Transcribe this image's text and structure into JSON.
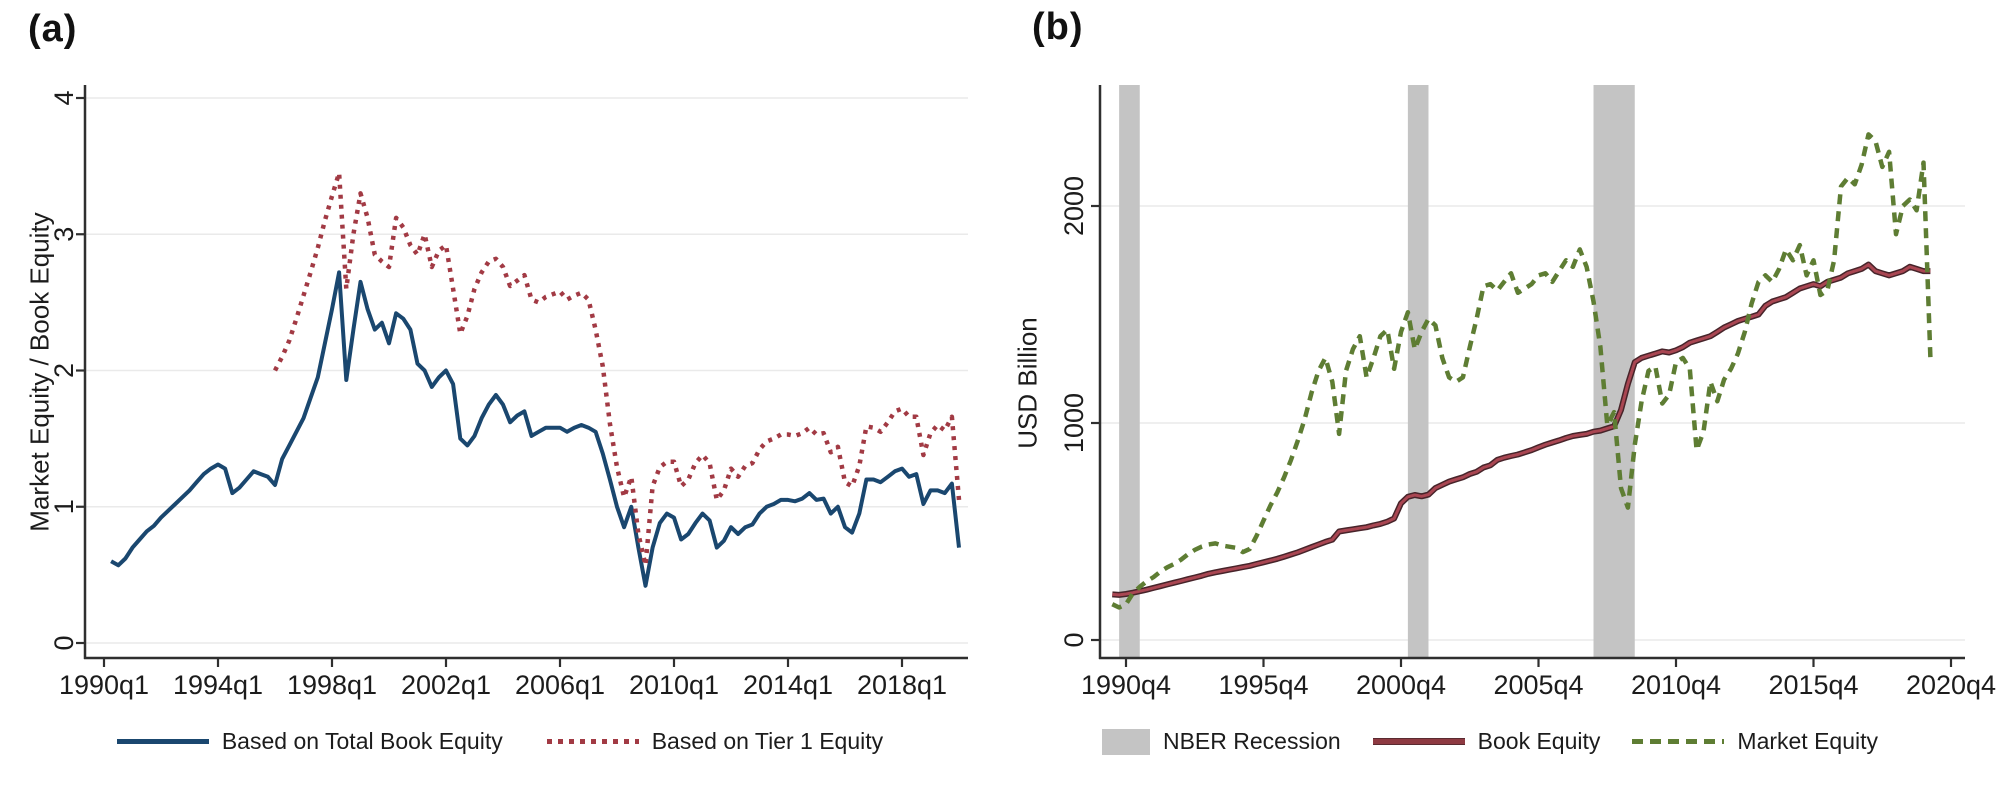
{
  "chart_data": [
    {
      "type": "line",
      "panel_label": "(a)",
      "ylabel": "Market Equity / Book Equity",
      "xlabel": "",
      "ylim": [
        0,
        4
      ],
      "grid": "horizontal",
      "legend_position": "bottom",
      "x_unit": "decimal years (quarterly)",
      "y_ticks": [
        {
          "v": 0,
          "label": "0"
        },
        {
          "v": 1,
          "label": "1"
        },
        {
          "v": 2,
          "label": "2"
        },
        {
          "v": 3,
          "label": "3"
        },
        {
          "v": 4,
          "label": "4"
        }
      ],
      "x_ticks": [
        {
          "t": 1990.0,
          "label": "1990q1"
        },
        {
          "t": 1994.0,
          "label": "1994q1"
        },
        {
          "t": 1998.0,
          "label": "1998q1"
        },
        {
          "t": 2002.0,
          "label": "2002q1"
        },
        {
          "t": 2006.0,
          "label": "2006q1"
        },
        {
          "t": 2010.0,
          "label": "2010q1"
        },
        {
          "t": 2014.0,
          "label": "2014q1"
        },
        {
          "t": 2018.0,
          "label": "2018q1"
        }
      ],
      "series": [
        {
          "name": "Based on Total Book Equity",
          "color": "#1a476f",
          "line": "solid",
          "width": 4,
          "start": 1990.25,
          "step": 0.25,
          "values": [
            0.6,
            0.57,
            0.62,
            0.7,
            0.76,
            0.82,
            0.86,
            0.92,
            0.97,
            1.02,
            1.07,
            1.12,
            1.18,
            1.24,
            1.28,
            1.31,
            1.28,
            1.1,
            1.14,
            1.2,
            1.26,
            1.24,
            1.22,
            1.16,
            1.35,
            1.45,
            1.55,
            1.65,
            1.8,
            1.95,
            2.2,
            2.45,
            2.72,
            1.93,
            2.3,
            2.65,
            2.45,
            2.3,
            2.35,
            2.2,
            2.42,
            2.38,
            2.3,
            2.05,
            2.0,
            1.88,
            1.95,
            2.0,
            1.9,
            1.5,
            1.45,
            1.52,
            1.65,
            1.75,
            1.82,
            1.75,
            1.62,
            1.67,
            1.7,
            1.52,
            1.55,
            1.58,
            1.58,
            1.58,
            1.55,
            1.58,
            1.6,
            1.58,
            1.55,
            1.39,
            1.2,
            1.0,
            0.85,
            1.0,
            0.7,
            0.42,
            0.7,
            0.88,
            0.95,
            0.92,
            0.76,
            0.8,
            0.88,
            0.95,
            0.9,
            0.7,
            0.75,
            0.85,
            0.8,
            0.85,
            0.87,
            0.95,
            1.0,
            1.02,
            1.05,
            1.05,
            1.04,
            1.06,
            1.1,
            1.05,
            1.06,
            0.95,
            1.0,
            0.85,
            0.81,
            0.95,
            1.2,
            1.2,
            1.18,
            1.22,
            1.26,
            1.28,
            1.22,
            1.24,
            1.02,
            1.12,
            1.12,
            1.1,
            1.17,
            0.7
          ]
        },
        {
          "name": "Based on Tier 1 Equity",
          "color": "#a23a44",
          "line": "dotted",
          "width": 4.5,
          "start": 1996.0,
          "step": 0.25,
          "values": [
            2.0,
            2.1,
            2.22,
            2.38,
            2.55,
            2.72,
            2.9,
            3.1,
            3.28,
            3.45,
            2.6,
            3.0,
            3.3,
            3.12,
            2.85,
            2.8,
            2.76,
            3.12,
            3.05,
            2.92,
            2.85,
            3.0,
            2.76,
            2.88,
            2.92,
            2.6,
            2.27,
            2.4,
            2.6,
            2.72,
            2.8,
            2.82,
            2.76,
            2.62,
            2.66,
            2.7,
            2.52,
            2.5,
            2.54,
            2.56,
            2.58,
            2.52,
            2.55,
            2.57,
            2.52,
            2.3,
            2.03,
            1.61,
            1.29,
            1.07,
            1.22,
            0.8,
            0.57,
            1.15,
            1.29,
            1.33,
            1.33,
            1.15,
            1.2,
            1.32,
            1.38,
            1.32,
            1.05,
            1.12,
            1.28,
            1.22,
            1.3,
            1.32,
            1.42,
            1.48,
            1.5,
            1.53,
            1.53,
            1.52,
            1.54,
            1.58,
            1.53,
            1.54,
            1.4,
            1.44,
            1.18,
            1.15,
            1.3,
            1.59,
            1.58,
            1.55,
            1.62,
            1.7,
            1.72,
            1.66,
            1.66,
            1.38,
            1.54,
            1.6,
            1.56,
            1.66,
            1.05
          ]
        }
      ]
    },
    {
      "type": "line",
      "panel_label": "(b)",
      "ylabel": "USD Billion",
      "xlabel": "",
      "ylim": [
        0,
        2550
      ],
      "grid": "horizontal",
      "legend_position": "bottom",
      "x_unit": "decimal years (quarterly)",
      "recession_label": "NBER Recession",
      "recession_color": "#c4c4c4",
      "recessions": [
        {
          "start": 1990.5,
          "end": 1991.25
        },
        {
          "start": 2001.0,
          "end": 2001.75
        },
        {
          "start": 2007.75,
          "end": 2009.25
        }
      ],
      "y_ticks": [
        {
          "v": 0,
          "label": "0"
        },
        {
          "v": 1000,
          "label": "1000"
        },
        {
          "v": 2000,
          "label": "2000"
        }
      ],
      "x_ticks": [
        {
          "t": 1990.75,
          "label": "1990q4"
        },
        {
          "t": 1995.75,
          "label": "1995q4"
        },
        {
          "t": 2000.75,
          "label": "2000q4"
        },
        {
          "t": 2005.75,
          "label": "2005q4"
        },
        {
          "t": 2010.75,
          "label": "2010q4"
        },
        {
          "t": 2015.75,
          "label": "2015q4"
        },
        {
          "t": 2020.75,
          "label": "2020q4"
        }
      ],
      "series": [
        {
          "name": "Book Equity",
          "color": "#a94652",
          "outline": "#47242a",
          "line": "solid",
          "width": 3,
          "start": 1990.25,
          "step": 0.25,
          "values": [
            210,
            208,
            212,
            218,
            225,
            232,
            240,
            248,
            256,
            264,
            272,
            280,
            288,
            296,
            305,
            312,
            318,
            324,
            330,
            336,
            342,
            350,
            358,
            366,
            374,
            384,
            394,
            404,
            416,
            428,
            440,
            452,
            462,
            500,
            505,
            510,
            515,
            520,
            528,
            535,
            545,
            560,
            630,
            660,
            668,
            662,
            670,
            700,
            715,
            730,
            740,
            750,
            765,
            775,
            795,
            805,
            830,
            840,
            848,
            855,
            865,
            875,
            888,
            900,
            910,
            920,
            931,
            940,
            945,
            950,
            960,
            965,
            975,
            985,
            1060,
            1180,
            1280,
            1300,
            1310,
            1320,
            1330,
            1325,
            1335,
            1350,
            1370,
            1380,
            1390,
            1400,
            1420,
            1440,
            1455,
            1470,
            1480,
            1490,
            1500,
            1540,
            1560,
            1570,
            1580,
            1600,
            1620,
            1630,
            1640,
            1630,
            1650,
            1660,
            1670,
            1690,
            1700,
            1710,
            1730,
            1700,
            1690,
            1680,
            1690,
            1700,
            1720,
            1710,
            1700,
            1700
          ]
        },
        {
          "name": "Market Equity",
          "color": "#5e7d33",
          "line": "dashed",
          "width": 4.5,
          "start": 1990.25,
          "step": 0.25,
          "values": [
            165,
            150,
            165,
            215,
            245,
            270,
            290,
            315,
            335,
            350,
            370,
            395,
            415,
            430,
            440,
            445,
            435,
            430,
            425,
            405,
            420,
            480,
            550,
            620,
            680,
            750,
            830,
            920,
            1020,
            1140,
            1240,
            1300,
            1190,
            950,
            1240,
            1340,
            1400,
            1210,
            1300,
            1400,
            1430,
            1250,
            1420,
            1510,
            1340,
            1420,
            1480,
            1450,
            1300,
            1210,
            1190,
            1210,
            1350,
            1480,
            1630,
            1640,
            1610,
            1650,
            1690,
            1600,
            1620,
            1640,
            1680,
            1690,
            1650,
            1700,
            1750,
            1720,
            1800,
            1720,
            1560,
            1350,
            990,
            1050,
            700,
            610,
            900,
            1100,
            1240,
            1260,
            1090,
            1130,
            1280,
            1300,
            1250,
            875,
            960,
            1190,
            1100,
            1200,
            1250,
            1320,
            1420,
            1550,
            1650,
            1680,
            1650,
            1710,
            1800,
            1750,
            1820,
            1680,
            1750,
            1590,
            1610,
            1750,
            2090,
            2130,
            2100,
            2190,
            2330,
            2300,
            2180,
            2250,
            1870,
            2000,
            2030,
            1980,
            2200,
            1300
          ]
        }
      ]
    }
  ]
}
